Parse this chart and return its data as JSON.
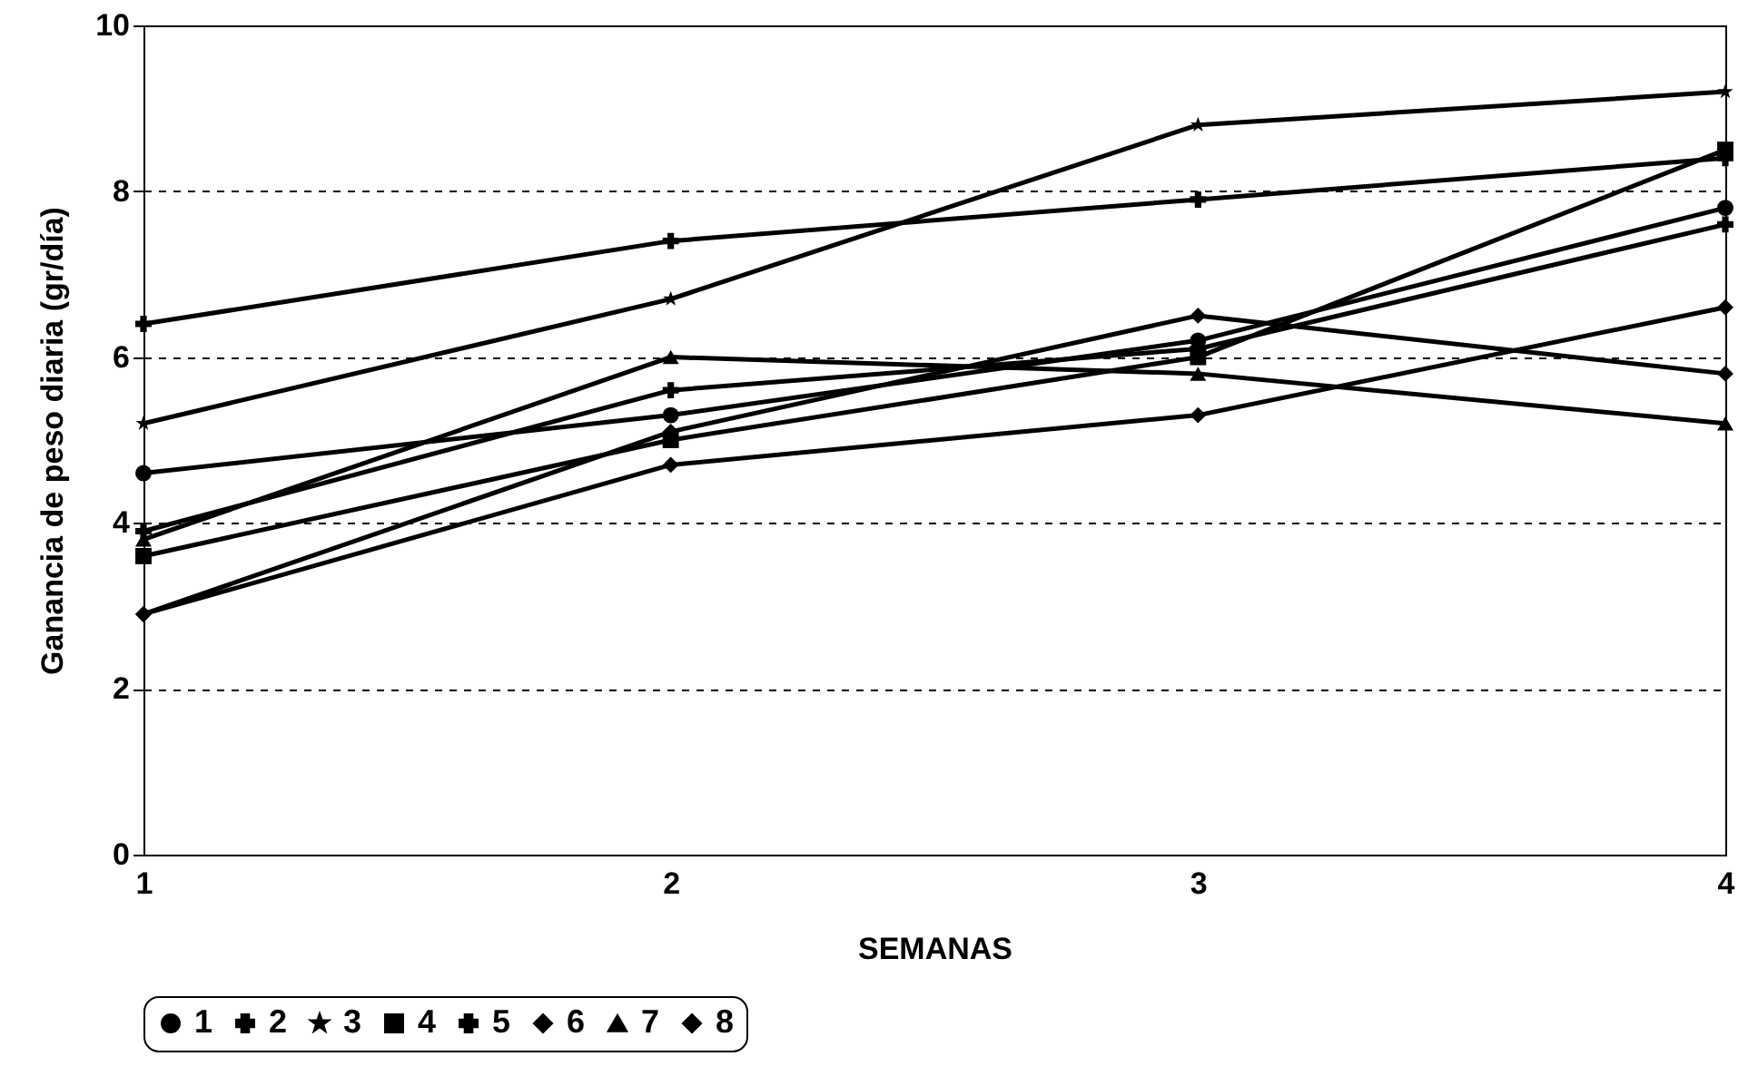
{
  "chart_data": {
    "type": "line",
    "xlabel": "SEMANAS",
    "ylabel": "Ganancia de peso diaria (gr/día)",
    "x": [
      1,
      2,
      3,
      4
    ],
    "xlim": [
      1,
      4
    ],
    "xticks": [
      1,
      2,
      3,
      4
    ],
    "ylim": [
      0,
      10
    ],
    "yticks": [
      0,
      2,
      4,
      6,
      8,
      10
    ],
    "grid": "y",
    "legend": "bottom",
    "line_style": "solid",
    "series": [
      {
        "name": "1",
        "color": "#000000",
        "marker": "circle",
        "values": [
          4.6,
          5.3,
          6.2,
          7.8
        ]
      },
      {
        "name": "2",
        "color": "#000000",
        "marker": "cross",
        "values": [
          6.4,
          7.4,
          7.9,
          8.4
        ]
      },
      {
        "name": "3",
        "color": "#000000",
        "marker": "star",
        "values": [
          5.2,
          6.7,
          8.8,
          9.2
        ]
      },
      {
        "name": "4",
        "color": "#000000",
        "marker": "square",
        "values": [
          3.6,
          5.0,
          6.0,
          8.5
        ]
      },
      {
        "name": "5",
        "color": "#000000",
        "marker": "cross",
        "values": [
          3.9,
          5.6,
          6.1,
          7.6
        ]
      },
      {
        "name": "6",
        "color": "#000000",
        "marker": "diamond",
        "values": [
          2.9,
          4.7,
          5.3,
          6.6
        ]
      },
      {
        "name": "7",
        "color": "#000000",
        "marker": "triangle",
        "values": [
          3.8,
          6.0,
          5.8,
          5.2
        ]
      },
      {
        "name": "8",
        "color": "#000000",
        "marker": "diamond",
        "values": [
          2.9,
          5.1,
          6.5,
          5.8
        ]
      }
    ]
  }
}
